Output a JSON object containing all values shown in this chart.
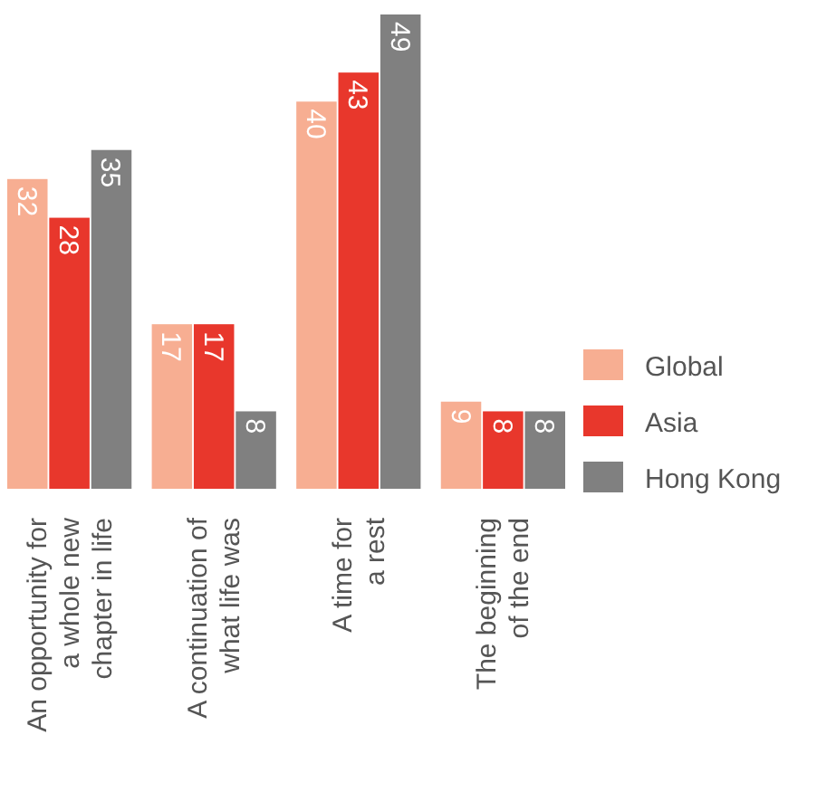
{
  "chart_data": {
    "type": "bar",
    "categories": [
      "An opportunity for\na whole new\nchapter in life",
      "A continuation of\nwhat life was",
      "A time for\na rest",
      "The beginning\nof the end"
    ],
    "series": [
      {
        "name": "Global",
        "color": "#f7ae92",
        "values": [
          32,
          17,
          40,
          9
        ]
      },
      {
        "name": "Asia",
        "color": "#e8372c",
        "values": [
          28,
          17,
          43,
          8
        ]
      },
      {
        "name": "Hong Kong",
        "color": "#808080",
        "values": [
          35,
          8,
          49,
          8
        ]
      }
    ],
    "data_labels": true,
    "legend": "right"
  }
}
